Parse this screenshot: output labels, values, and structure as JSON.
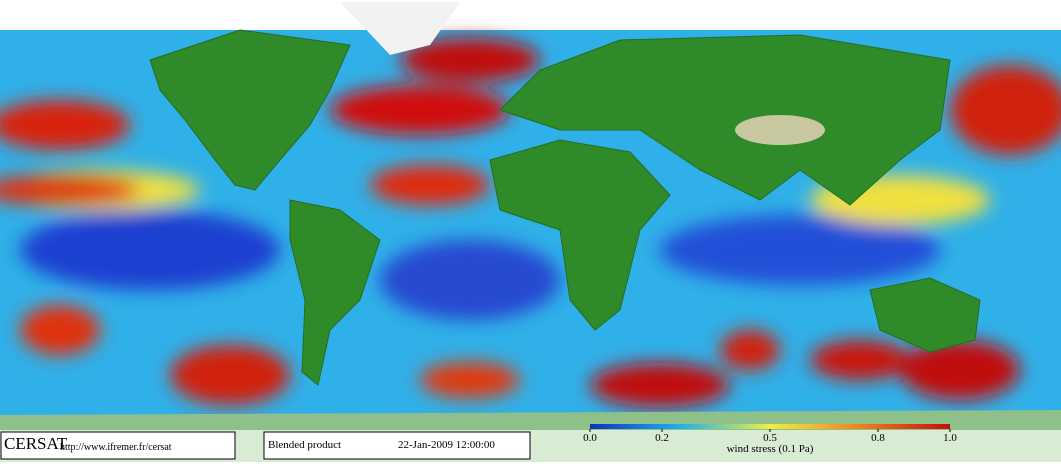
{
  "logo": "CERSAT",
  "url": "http://www.ifremer.fr/cersat",
  "product": "Blended product",
  "date": "22-Jan-2009 12:00:00",
  "colorbar": {
    "label": "wind stress (0.1 Pa)",
    "lim": [
      0,
      1
    ],
    "ticks": [
      {
        "value": 0,
        "label": "0.0"
      },
      0.2,
      0.5,
      0.8,
      {
        "value": 1,
        "label": "1.0"
      }
    ]
  }
}
